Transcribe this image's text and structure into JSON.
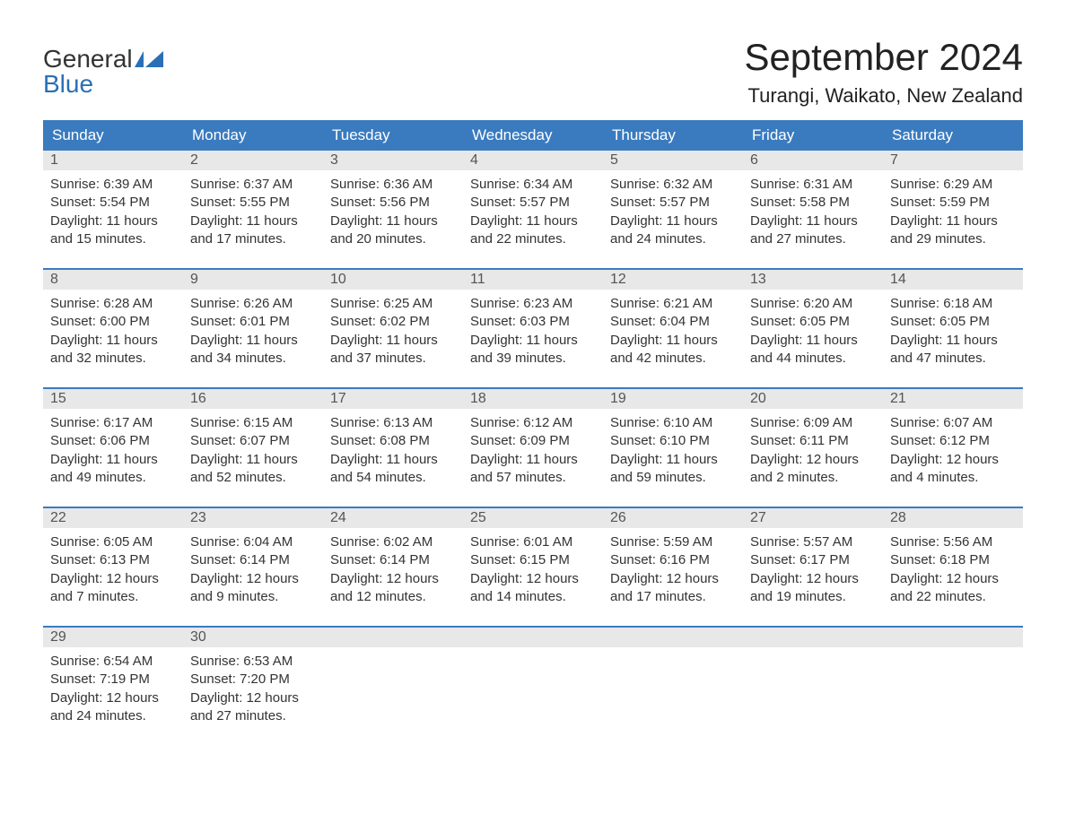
{
  "logo": {
    "word1": "General",
    "word2": "Blue"
  },
  "title": "September 2024",
  "location": "Turangi, Waikato, New Zealand",
  "colors": {
    "header_bg": "#3a7bbf",
    "header_text": "#ffffff",
    "daynum_bg": "#e8e8e8",
    "daynum_text": "#555555",
    "body_text": "#333333",
    "accent": "#2a6fb5",
    "page_bg": "#ffffff"
  },
  "weekdays": [
    "Sunday",
    "Monday",
    "Tuesday",
    "Wednesday",
    "Thursday",
    "Friday",
    "Saturday"
  ],
  "weeks": [
    [
      {
        "n": "1",
        "sr": "6:39 AM",
        "ss": "5:54 PM",
        "d1": "11 hours",
        "d2": "15 minutes."
      },
      {
        "n": "2",
        "sr": "6:37 AM",
        "ss": "5:55 PM",
        "d1": "11 hours",
        "d2": "17 minutes."
      },
      {
        "n": "3",
        "sr": "6:36 AM",
        "ss": "5:56 PM",
        "d1": "11 hours",
        "d2": "20 minutes."
      },
      {
        "n": "4",
        "sr": "6:34 AM",
        "ss": "5:57 PM",
        "d1": "11 hours",
        "d2": "22 minutes."
      },
      {
        "n": "5",
        "sr": "6:32 AM",
        "ss": "5:57 PM",
        "d1": "11 hours",
        "d2": "24 minutes."
      },
      {
        "n": "6",
        "sr": "6:31 AM",
        "ss": "5:58 PM",
        "d1": "11 hours",
        "d2": "27 minutes."
      },
      {
        "n": "7",
        "sr": "6:29 AM",
        "ss": "5:59 PM",
        "d1": "11 hours",
        "d2": "29 minutes."
      }
    ],
    [
      {
        "n": "8",
        "sr": "6:28 AM",
        "ss": "6:00 PM",
        "d1": "11 hours",
        "d2": "32 minutes."
      },
      {
        "n": "9",
        "sr": "6:26 AM",
        "ss": "6:01 PM",
        "d1": "11 hours",
        "d2": "34 minutes."
      },
      {
        "n": "10",
        "sr": "6:25 AM",
        "ss": "6:02 PM",
        "d1": "11 hours",
        "d2": "37 minutes."
      },
      {
        "n": "11",
        "sr": "6:23 AM",
        "ss": "6:03 PM",
        "d1": "11 hours",
        "d2": "39 minutes."
      },
      {
        "n": "12",
        "sr": "6:21 AM",
        "ss": "6:04 PM",
        "d1": "11 hours",
        "d2": "42 minutes."
      },
      {
        "n": "13",
        "sr": "6:20 AM",
        "ss": "6:05 PM",
        "d1": "11 hours",
        "d2": "44 minutes."
      },
      {
        "n": "14",
        "sr": "6:18 AM",
        "ss": "6:05 PM",
        "d1": "11 hours",
        "d2": "47 minutes."
      }
    ],
    [
      {
        "n": "15",
        "sr": "6:17 AM",
        "ss": "6:06 PM",
        "d1": "11 hours",
        "d2": "49 minutes."
      },
      {
        "n": "16",
        "sr": "6:15 AM",
        "ss": "6:07 PM",
        "d1": "11 hours",
        "d2": "52 minutes."
      },
      {
        "n": "17",
        "sr": "6:13 AM",
        "ss": "6:08 PM",
        "d1": "11 hours",
        "d2": "54 minutes."
      },
      {
        "n": "18",
        "sr": "6:12 AM",
        "ss": "6:09 PM",
        "d1": "11 hours",
        "d2": "57 minutes."
      },
      {
        "n": "19",
        "sr": "6:10 AM",
        "ss": "6:10 PM",
        "d1": "11 hours",
        "d2": "59 minutes."
      },
      {
        "n": "20",
        "sr": "6:09 AM",
        "ss": "6:11 PM",
        "d1": "12 hours",
        "d2": "2 minutes."
      },
      {
        "n": "21",
        "sr": "6:07 AM",
        "ss": "6:12 PM",
        "d1": "12 hours",
        "d2": "4 minutes."
      }
    ],
    [
      {
        "n": "22",
        "sr": "6:05 AM",
        "ss": "6:13 PM",
        "d1": "12 hours",
        "d2": "7 minutes."
      },
      {
        "n": "23",
        "sr": "6:04 AM",
        "ss": "6:14 PM",
        "d1": "12 hours",
        "d2": "9 minutes."
      },
      {
        "n": "24",
        "sr": "6:02 AM",
        "ss": "6:14 PM",
        "d1": "12 hours",
        "d2": "12 minutes."
      },
      {
        "n": "25",
        "sr": "6:01 AM",
        "ss": "6:15 PM",
        "d1": "12 hours",
        "d2": "14 minutes."
      },
      {
        "n": "26",
        "sr": "5:59 AM",
        "ss": "6:16 PM",
        "d1": "12 hours",
        "d2": "17 minutes."
      },
      {
        "n": "27",
        "sr": "5:57 AM",
        "ss": "6:17 PM",
        "d1": "12 hours",
        "d2": "19 minutes."
      },
      {
        "n": "28",
        "sr": "5:56 AM",
        "ss": "6:18 PM",
        "d1": "12 hours",
        "d2": "22 minutes."
      }
    ],
    [
      {
        "n": "29",
        "sr": "6:54 AM",
        "ss": "7:19 PM",
        "d1": "12 hours",
        "d2": "24 minutes."
      },
      {
        "n": "30",
        "sr": "6:53 AM",
        "ss": "7:20 PM",
        "d1": "12 hours",
        "d2": "27 minutes."
      },
      null,
      null,
      null,
      null,
      null
    ]
  ],
  "labels": {
    "sunrise": "Sunrise: ",
    "sunset": "Sunset: ",
    "daylight": "Daylight: ",
    "and": "and "
  }
}
